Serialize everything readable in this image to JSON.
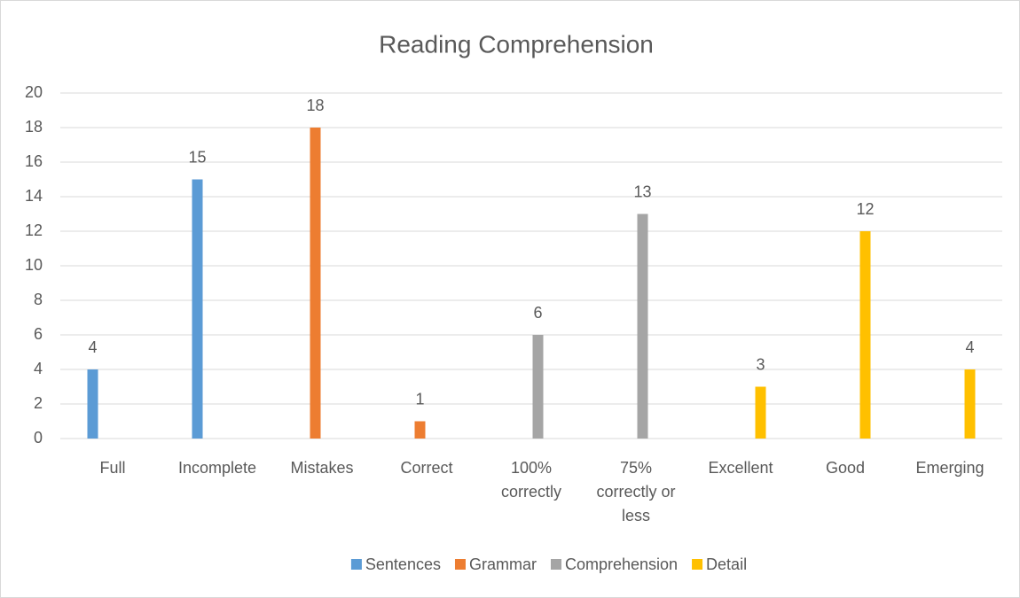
{
  "chart_data": {
    "type": "bar",
    "title": "Reading Comprehension",
    "categories": [
      "Full",
      "Incomplete",
      "Mistakes",
      "Correct",
      "100% correctly",
      "75% correctly or less",
      "Excellent",
      "Good",
      "Emerging"
    ],
    "series": [
      {
        "name": "Sentences",
        "color": "#5b9bd5",
        "values": [
          4,
          15,
          null,
          null,
          null,
          null,
          null,
          null,
          null
        ]
      },
      {
        "name": "Grammar",
        "color": "#ed7d31",
        "values": [
          null,
          null,
          18,
          1,
          null,
          null,
          null,
          null,
          null
        ]
      },
      {
        "name": "Comprehension",
        "color": "#a5a5a5",
        "values": [
          null,
          null,
          null,
          null,
          6,
          13,
          null,
          null,
          null
        ]
      },
      {
        "name": "Detail",
        "color": "#ffc000",
        "values": [
          null,
          null,
          null,
          null,
          null,
          null,
          3,
          12,
          4
        ]
      }
    ],
    "ylim": [
      0,
      20
    ],
    "yticks": [
      0,
      2,
      4,
      6,
      8,
      10,
      12,
      14,
      16,
      18,
      20
    ],
    "grid": true,
    "legend": "bottom"
  }
}
